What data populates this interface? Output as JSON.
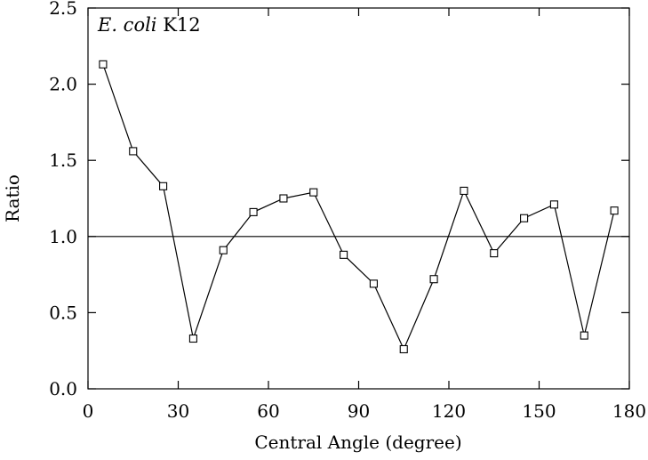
{
  "chart_data": {
    "type": "line",
    "annotation": {
      "italic": "E. coli",
      "normal": " K12"
    },
    "xlabel": "Central Angle (degree)",
    "ylabel": "Ratio",
    "xlim": [
      0,
      180
    ],
    "ylim": [
      0,
      2.5
    ],
    "xticks": [
      0,
      30,
      60,
      90,
      120,
      150,
      180
    ],
    "yticks": [
      "0.0",
      "0.5",
      "1.0",
      "1.5",
      "2.0",
      "2.5"
    ],
    "grid": false,
    "reference_line": 1.0,
    "series": [
      {
        "marker": "open-square",
        "x": [
          5,
          15,
          25,
          35,
          45,
          55,
          65,
          75,
          85,
          95,
          105,
          115,
          125,
          135,
          145,
          155,
          165,
          175
        ],
        "y": [
          2.13,
          1.56,
          1.33,
          0.33,
          0.91,
          1.16,
          1.25,
          1.29,
          0.88,
          0.69,
          0.26,
          0.72,
          1.3,
          0.89,
          1.12,
          1.21,
          0.35,
          1.17
        ]
      }
    ]
  }
}
